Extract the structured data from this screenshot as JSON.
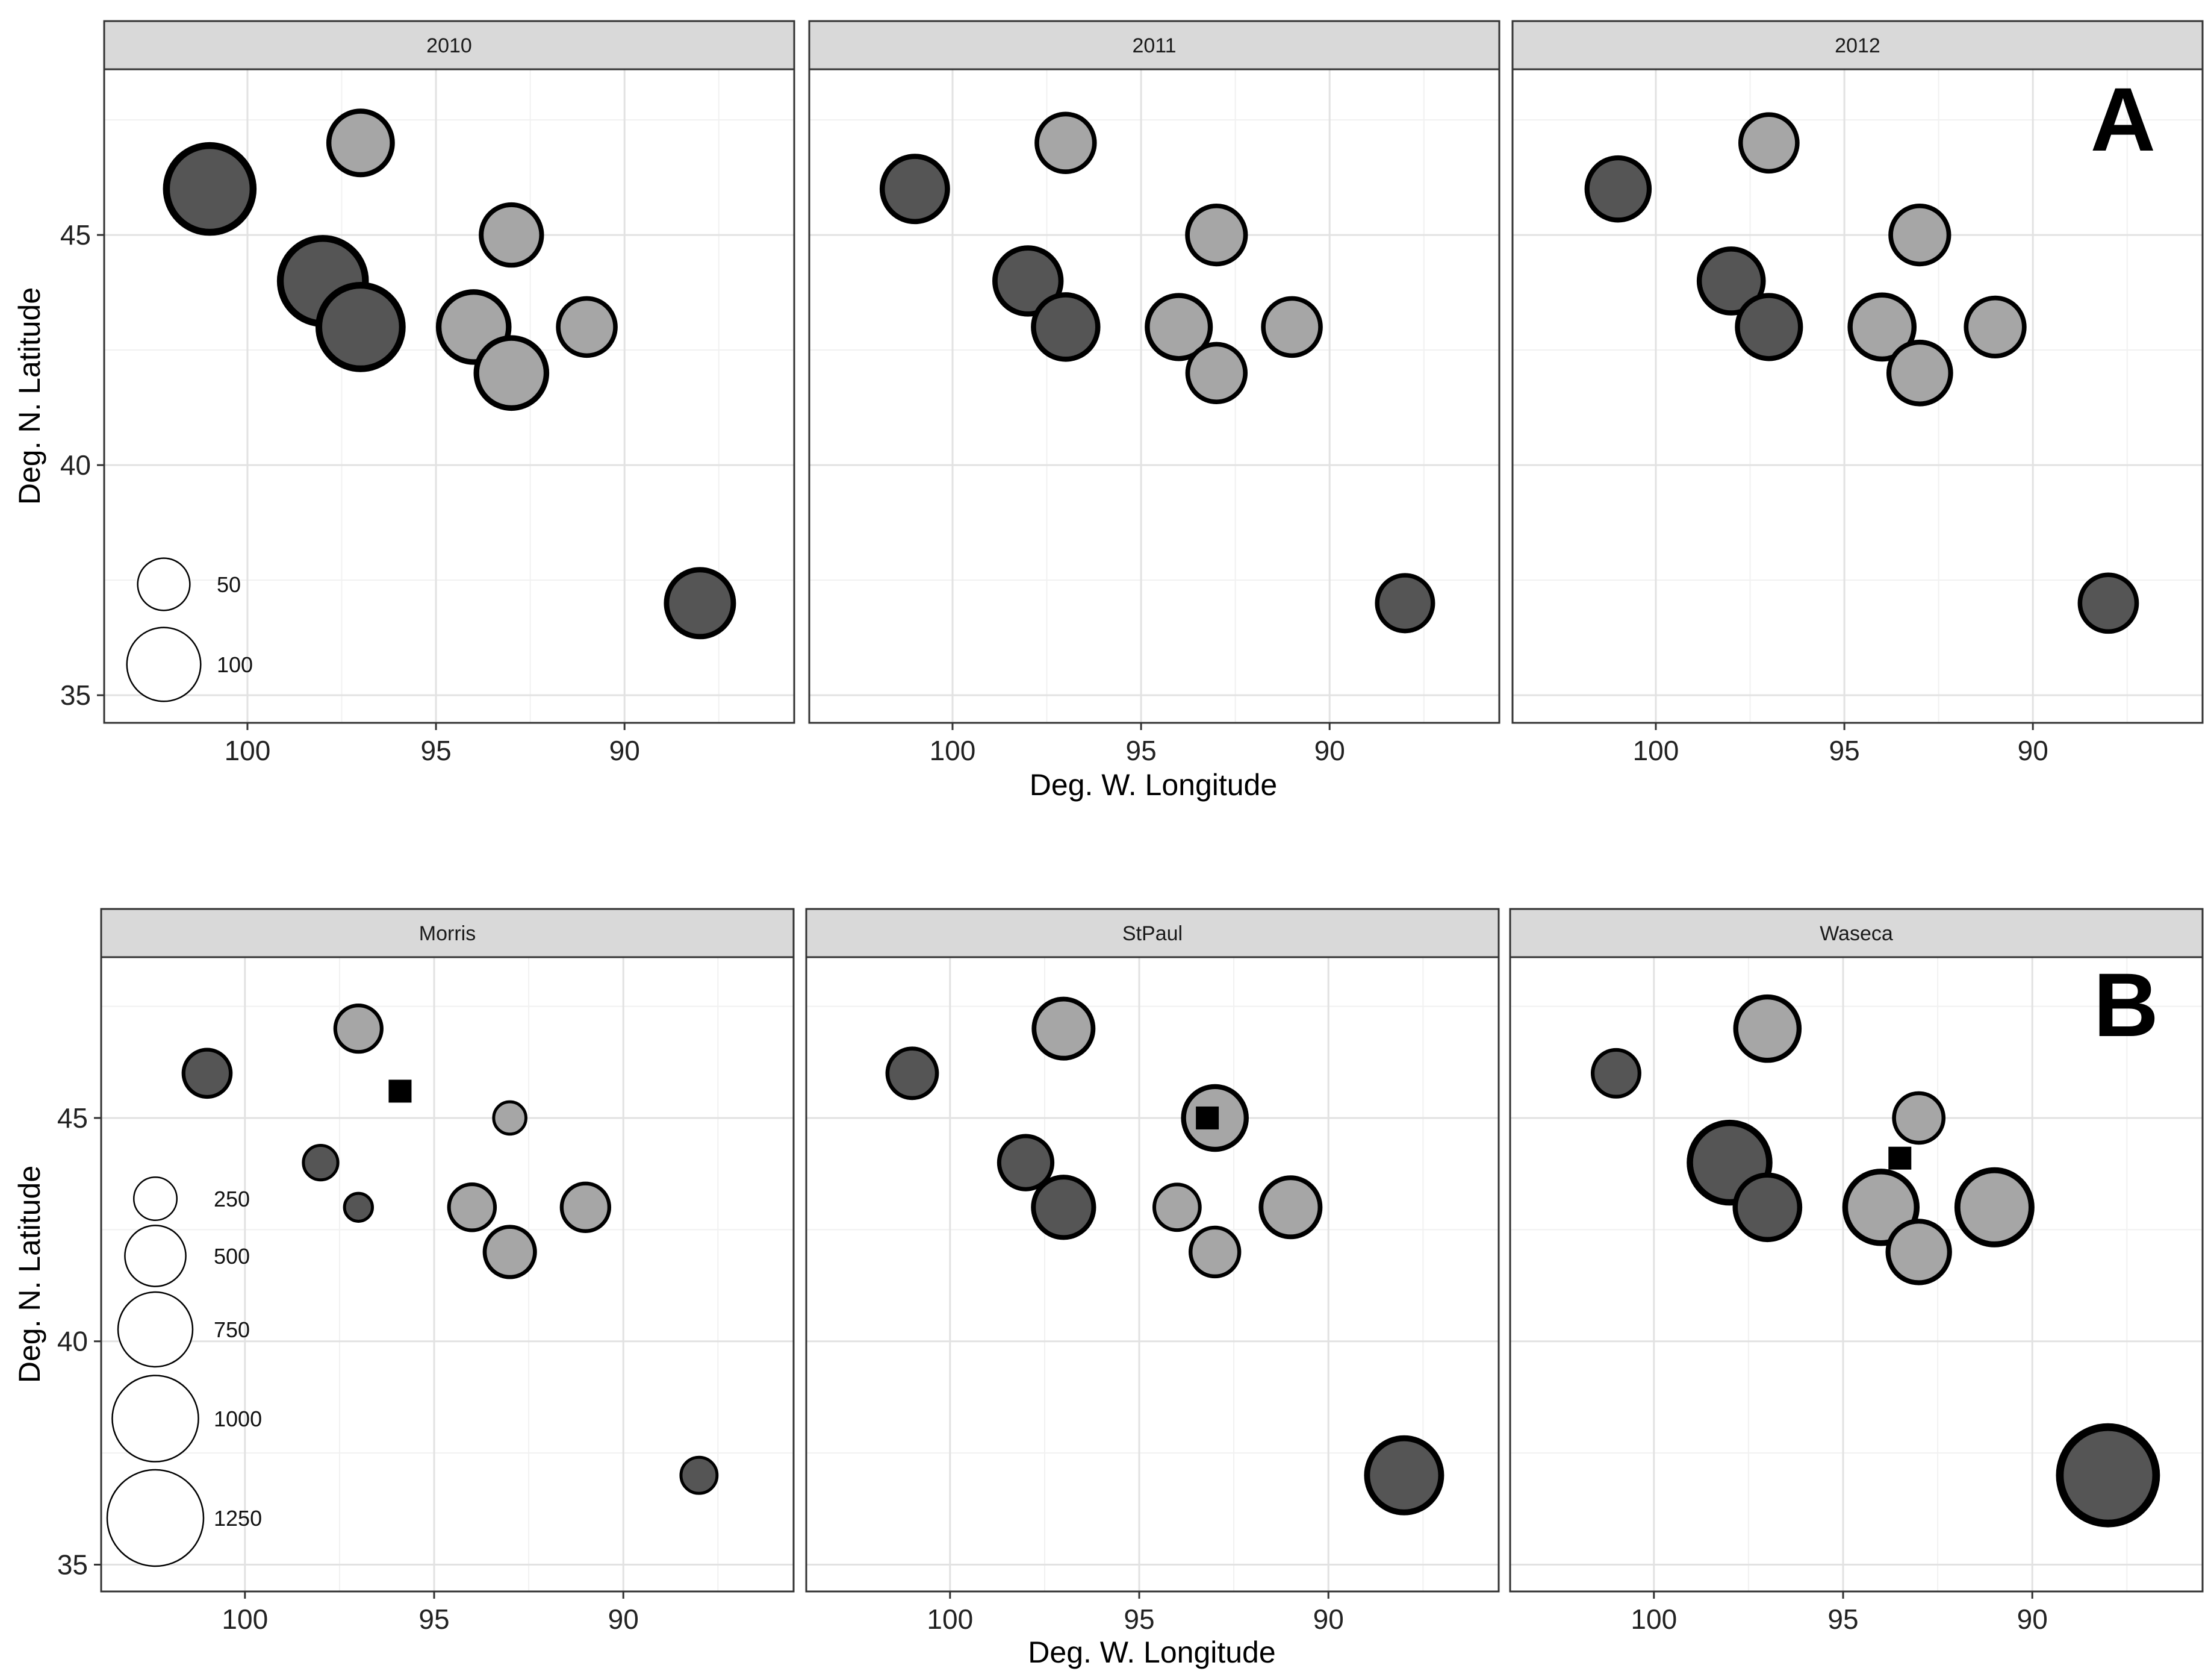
{
  "chart_data": [
    {
      "id": "A",
      "type": "scatter",
      "panel_letter": "A",
      "xlabel": "Deg. W. Longitude",
      "ylabel": "Deg. N. Latitude",
      "xlim": [
        85.5,
        103.8
      ],
      "ylim": [
        34.4,
        48.6
      ],
      "x_reversed": true,
      "x_ticks": [
        100,
        95,
        90
      ],
      "y_ticks": [
        35,
        40,
        45
      ],
      "size_legend": {
        "labels": [
          "50",
          "100"
        ],
        "values": [
          50,
          100
        ]
      },
      "colors": {
        "dark": "#555555",
        "light": "#a6a6a6",
        "stroke": "#000000",
        "strip": "#d9d9d9"
      },
      "facets": [
        {
          "label": "2010",
          "points": [
            {
              "lon": 101,
              "lat": 46,
              "size": 138,
              "group": "dark"
            },
            {
              "lon": 98,
              "lat": 44,
              "size": 133,
              "group": "dark"
            },
            {
              "lon": 97,
              "lat": 43,
              "size": 128,
              "group": "dark"
            },
            {
              "lon": 88,
              "lat": 37,
              "size": 82,
              "group": "dark"
            },
            {
              "lon": 97,
              "lat": 47,
              "size": 74,
              "group": "light"
            },
            {
              "lon": 93,
              "lat": 45,
              "size": 67,
              "group": "light"
            },
            {
              "lon": 94,
              "lat": 43,
              "size": 90,
              "group": "light"
            },
            {
              "lon": 93,
              "lat": 42,
              "size": 90,
              "group": "light"
            },
            {
              "lon": 91,
              "lat": 43,
              "size": 60,
              "group": "light"
            }
          ]
        },
        {
          "label": "2011",
          "points": [
            {
              "lon": 101,
              "lat": 46,
              "size": 78,
              "group": "dark"
            },
            {
              "lon": 98,
              "lat": 44,
              "size": 80,
              "group": "dark"
            },
            {
              "lon": 97,
              "lat": 43,
              "size": 76,
              "group": "dark"
            },
            {
              "lon": 88,
              "lat": 37,
              "size": 57,
              "group": "dark"
            },
            {
              "lon": 97,
              "lat": 47,
              "size": 61,
              "group": "light"
            },
            {
              "lon": 93,
              "lat": 45,
              "size": 62,
              "group": "light"
            },
            {
              "lon": 94,
              "lat": 43,
              "size": 73,
              "group": "light"
            },
            {
              "lon": 93,
              "lat": 42,
              "size": 61,
              "group": "light"
            },
            {
              "lon": 91,
              "lat": 43,
              "size": 60,
              "group": "light"
            }
          ]
        },
        {
          "label": "2012",
          "points": [
            {
              "lon": 101,
              "lat": 46,
              "size": 71,
              "group": "dark"
            },
            {
              "lon": 98,
              "lat": 44,
              "size": 75,
              "group": "dark"
            },
            {
              "lon": 97,
              "lat": 43,
              "size": 73,
              "group": "dark"
            },
            {
              "lon": 88,
              "lat": 37,
              "size": 59,
              "group": "dark"
            },
            {
              "lon": 97,
              "lat": 47,
              "size": 59,
              "group": "light"
            },
            {
              "lon": 93,
              "lat": 45,
              "size": 62,
              "group": "light"
            },
            {
              "lon": 94,
              "lat": 43,
              "size": 75,
              "group": "light"
            },
            {
              "lon": 93,
              "lat": 42,
              "size": 70,
              "group": "light"
            },
            {
              "lon": 91,
              "lat": 43,
              "size": 62,
              "group": "light"
            }
          ]
        }
      ]
    },
    {
      "id": "B",
      "type": "scatter",
      "panel_letter": "B",
      "xlabel": "Deg. W. Longitude",
      "ylabel": "Deg. N. Latitude",
      "xlim": [
        85.5,
        103.8
      ],
      "ylim": [
        34.4,
        48.6
      ],
      "x_reversed": true,
      "x_ticks": [
        100,
        95,
        90
      ],
      "y_ticks": [
        35,
        40,
        45
      ],
      "size_legend": {
        "labels": [
          "250",
          "500",
          "750",
          "1000",
          "1250"
        ],
        "values": [
          250,
          500,
          750,
          1000,
          1250
        ]
      },
      "colors": {
        "dark": "#555555",
        "light": "#a6a6a6",
        "stroke": "#000000",
        "strip": "#d9d9d9"
      },
      "facets": [
        {
          "label": "Morris",
          "points": [
            {
              "lon": 101,
              "lat": 46,
              "size": 300,
              "group": "dark"
            },
            {
              "lon": 98,
              "lat": 44,
              "size": 160,
              "group": "dark"
            },
            {
              "lon": 97,
              "lat": 43,
              "size": 105,
              "group": "dark"
            },
            {
              "lon": 88,
              "lat": 37,
              "size": 175,
              "group": "dark"
            },
            {
              "lon": 97,
              "lat": 47,
              "size": 290,
              "group": "light"
            },
            {
              "lon": 93,
              "lat": 45,
              "size": 140,
              "group": "light"
            },
            {
              "lon": 94,
              "lat": 43,
              "size": 285,
              "group": "light"
            },
            {
              "lon": 93,
              "lat": 42,
              "size": 340,
              "group": "light"
            },
            {
              "lon": 91,
              "lat": 43,
              "size": 305,
              "group": "light"
            }
          ],
          "square": {
            "lon": 95.9,
            "lat": 45.6
          }
        },
        {
          "label": "StPaul",
          "points": [
            {
              "lon": 101,
              "lat": 46,
              "size": 330,
              "group": "dark"
            },
            {
              "lon": 98,
              "lat": 44,
              "size": 380,
              "group": "dark"
            },
            {
              "lon": 97,
              "lat": 43,
              "size": 490,
              "group": "dark"
            },
            {
              "lon": 88,
              "lat": 37,
              "size": 740,
              "group": "dark"
            },
            {
              "lon": 97,
              "lat": 47,
              "size": 470,
              "group": "light"
            },
            {
              "lon": 93,
              "lat": 45,
              "size": 530,
              "group": "light"
            },
            {
              "lon": 94,
              "lat": 43,
              "size": 280,
              "group": "light"
            },
            {
              "lon": 93,
              "lat": 42,
              "size": 320,
              "group": "light"
            },
            {
              "lon": 91,
              "lat": 43,
              "size": 470,
              "group": "light"
            }
          ],
          "square": {
            "lon": 93.2,
            "lat": 45
          }
        },
        {
          "label": "Waseca",
          "points": [
            {
              "lon": 101,
              "lat": 46,
              "size": 295,
              "group": "dark"
            },
            {
              "lon": 98,
              "lat": 44,
              "size": 850,
              "group": "dark"
            },
            {
              "lon": 97,
              "lat": 43,
              "size": 560,
              "group": "dark"
            },
            {
              "lon": 88,
              "lat": 37,
              "size": 1250,
              "group": "dark"
            },
            {
              "lon": 97,
              "lat": 47,
              "size": 540,
              "group": "light"
            },
            {
              "lon": 93,
              "lat": 45,
              "size": 330,
              "group": "light"
            },
            {
              "lon": 94,
              "lat": 43,
              "size": 690,
              "group": "light"
            },
            {
              "lon": 93,
              "lat": 42,
              "size": 510,
              "group": "light"
            },
            {
              "lon": 91,
              "lat": 43,
              "size": 740,
              "group": "light"
            }
          ],
          "square": {
            "lon": 93.5,
            "lat": 44.1
          }
        }
      ]
    }
  ]
}
